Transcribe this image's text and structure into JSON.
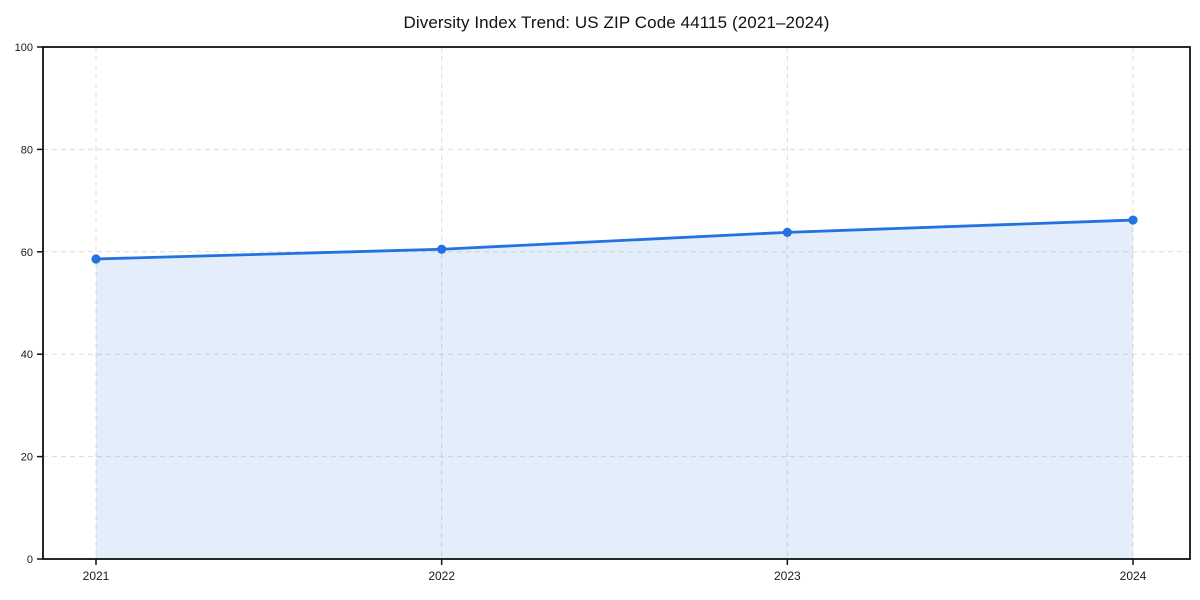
{
  "chart_data": {
    "type": "area",
    "title": "Diversity Index Trend: US ZIP Code 44115 (2021–2024)",
    "x": [
      "2021",
      "2022",
      "2023",
      "2024"
    ],
    "series": [
      {
        "name": "Diversity Index",
        "values": [
          58.6,
          60.5,
          63.8,
          66.2
        ]
      }
    ],
    "xlabel": "",
    "ylabel": "",
    "ylim": [
      0,
      100
    ],
    "yticks": [
      0,
      20,
      40,
      60,
      80,
      100
    ],
    "grid": true,
    "grid_style": "dashed",
    "legend": false,
    "marker": "circle",
    "colors": {
      "line": "#2272e0",
      "marker": "#2272e0",
      "fill": "#2272e0",
      "grid": "#dcdcdc",
      "axis": "#111111",
      "tick_text": "#1a1a1a",
      "title_text": "#111111",
      "background": "#ffffff"
    }
  }
}
